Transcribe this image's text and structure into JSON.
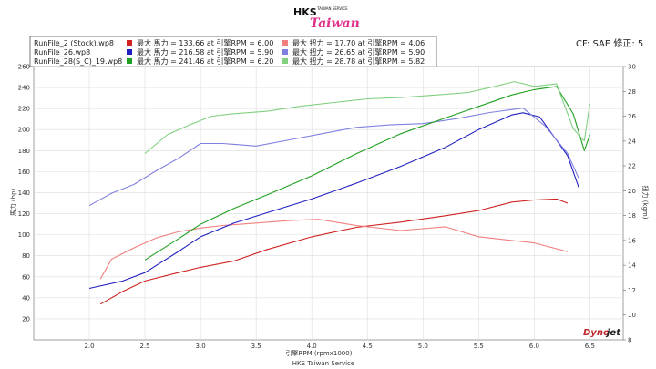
{
  "logo": {
    "brand": "HKS",
    "tagline": "TAIWAN SERVICE",
    "script": "Taiwan"
  },
  "cf_label": "CF: SAE 修正: 5",
  "footer": "HKS Taiwan Service",
  "watermark": {
    "part1": "Dyno",
    "part2": "jet"
  },
  "legend": {
    "files": [
      "RunFile_2 (Stock).wp8",
      "RunFile_26.wp8",
      "RunFile_28(S_C)_19.wp8"
    ],
    "power": [
      {
        "text": "最大 馬力 = 133.66 at 引擎RPM = 6.00",
        "color": "#d02020"
      },
      {
        "text": "最大 馬力 = 216.58 at 引擎RPM = 5.90",
        "color": "#2020c0"
      },
      {
        "text": "最大 馬力 = 241.46 at 引擎RPM = 6.20",
        "color": "#20a020"
      }
    ],
    "torque": [
      {
        "text": "最大 扭力 = 17.70 at 引擎RPM = 4.06",
        "color": "#f08080"
      },
      {
        "text": "最大 扭力 = 26.65 at 引擎RPM = 5.90",
        "color": "#8080e0"
      },
      {
        "text": "最大 扭力 = 28.78 at 引擎RPM = 5.82",
        "color": "#80d080"
      }
    ]
  },
  "chart_data": {
    "type": "line",
    "xlabel": "引擎RPM (rpmx1000)",
    "ylabel": "馬力 (hp)",
    "y2label": "扭力 (kgm)",
    "xlim": [
      1.5,
      6.8
    ],
    "ylim": [
      0,
      260
    ],
    "y2lim": [
      8,
      30
    ],
    "xticks": [
      2.0,
      2.5,
      3.0,
      3.5,
      4.0,
      4.5,
      5.0,
      5.5,
      6.0,
      6.5
    ],
    "xtick_labels": [
      "2.0",
      "2.5",
      "3.0",
      "3.5",
      "4.0",
      "4.5",
      "5.0",
      "5.5",
      "6.0",
      "6.5"
    ],
    "yticks": [
      20,
      40,
      60,
      80,
      100,
      120,
      140,
      160,
      180,
      200,
      220,
      240,
      260
    ],
    "y2ticks": [
      8,
      10,
      12,
      14,
      16,
      18,
      20,
      22,
      24,
      26,
      28,
      30
    ],
    "grid": true,
    "series": [
      {
        "axis": "left",
        "color": "#d02020",
        "x": [
          2.1,
          2.3,
          2.5,
          2.8,
          3.0,
          3.3,
          3.6,
          4.0,
          4.4,
          4.8,
          5.2,
          5.5,
          5.8,
          6.0,
          6.2,
          6.3
        ],
        "y": [
          34,
          46,
          56,
          64,
          69,
          75,
          86,
          98,
          107,
          112,
          118,
          123,
          131,
          133,
          134,
          130
        ]
      },
      {
        "axis": "right",
        "color": "#f08080",
        "x": [
          2.1,
          2.2,
          2.4,
          2.6,
          2.8,
          3.0,
          3.2,
          3.5,
          3.8,
          4.06,
          4.4,
          4.8,
          5.2,
          5.5,
          5.8,
          6.0,
          6.3
        ],
        "y": [
          12.9,
          14.5,
          15.4,
          16.2,
          16.7,
          17.0,
          17.2,
          17.4,
          17.6,
          17.7,
          17.2,
          16.8,
          17.1,
          16.3,
          16.0,
          15.8,
          15.1
        ]
      },
      {
        "axis": "left",
        "color": "#2020c0",
        "x": [
          2.0,
          2.3,
          2.5,
          2.8,
          3.0,
          3.3,
          3.6,
          4.0,
          4.4,
          4.8,
          5.2,
          5.5,
          5.8,
          5.9,
          6.05,
          6.2,
          6.3,
          6.4
        ],
        "y": [
          49,
          56,
          64,
          84,
          98,
          111,
          121,
          134,
          149,
          165,
          183,
          200,
          214,
          216,
          212,
          190,
          175,
          145
        ]
      },
      {
        "axis": "right",
        "color": "#8080e0",
        "x": [
          2.0,
          2.2,
          2.4,
          2.6,
          2.8,
          3.0,
          3.2,
          3.5,
          3.8,
          4.1,
          4.4,
          4.7,
          5.0,
          5.3,
          5.6,
          5.9,
          6.1,
          6.3,
          6.4
        ],
        "y": [
          18.8,
          19.8,
          20.5,
          21.6,
          22.6,
          23.8,
          23.8,
          23.6,
          24.1,
          24.6,
          25.1,
          25.3,
          25.4,
          25.8,
          26.3,
          26.65,
          25.2,
          23.0,
          21.0
        ]
      },
      {
        "axis": "left",
        "color": "#20a020",
        "x": [
          2.5,
          2.8,
          3.0,
          3.3,
          3.6,
          4.0,
          4.4,
          4.8,
          5.2,
          5.5,
          5.8,
          6.0,
          6.2,
          6.35,
          6.45,
          6.5
        ],
        "y": [
          76,
          96,
          110,
          125,
          138,
          156,
          177,
          196,
          211,
          222,
          233,
          238,
          241,
          215,
          180,
          195
        ]
      },
      {
        "axis": "right",
        "color": "#80d080",
        "x": [
          2.5,
          2.7,
          2.9,
          3.1,
          3.3,
          3.6,
          3.9,
          4.2,
          4.5,
          4.8,
          5.1,
          5.4,
          5.6,
          5.82,
          6.0,
          6.2,
          6.35,
          6.45,
          6.5
        ],
        "y": [
          23.0,
          24.5,
          25.3,
          26.0,
          26.2,
          26.4,
          26.8,
          27.1,
          27.4,
          27.5,
          27.7,
          27.9,
          28.3,
          28.78,
          28.4,
          28.6,
          25.0,
          24.0,
          27.0
        ]
      }
    ]
  }
}
